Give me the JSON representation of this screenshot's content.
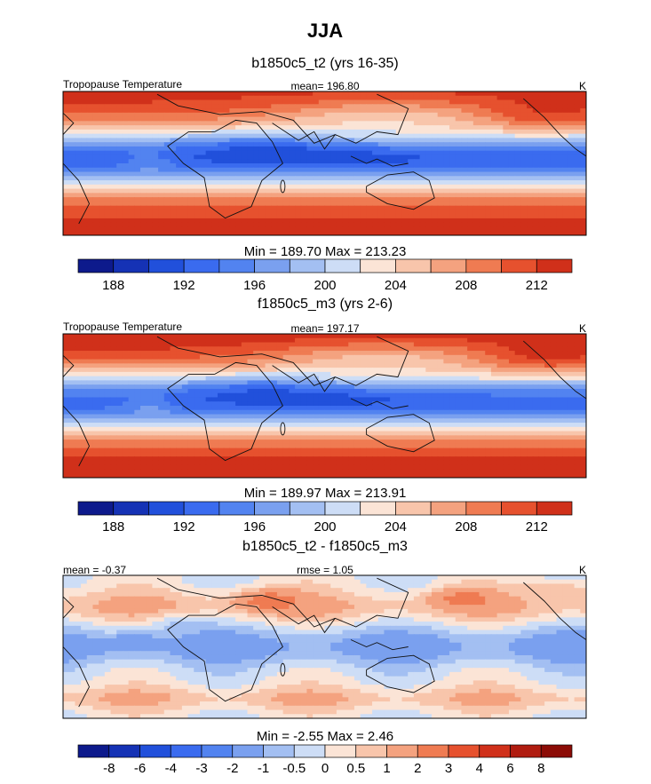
{
  "title": "JJA",
  "chart_data": [
    {
      "type": "heatmap",
      "title": "b1850c5_t2 (yrs 16-35)",
      "left_label": "Tropopause Temperature",
      "center_label": "mean= 196.80",
      "right_label": "K",
      "field": {
        "mean": 196.8,
        "min": 189.7,
        "max": 213.23,
        "tropics_value": 193.0,
        "pole_value": 213.0,
        "band_width": 30,
        "lat_range": [
          -60,
          70
        ],
        "lon_range": [
          -20,
          340
        ]
      },
      "stats_text": "Min = 189.70 Max = 213.23",
      "colorbar": {
        "levels": [
          186,
          188,
          190,
          192,
          194,
          196,
          198,
          200,
          202,
          204,
          206,
          208,
          210,
          212,
          214
        ],
        "tick_labels": [
          "188",
          "192",
          "196",
          "200",
          "204",
          "208",
          "212"
        ]
      }
    },
    {
      "type": "heatmap",
      "title": "f1850c5_m3 (yrs 2-6)",
      "left_label": "Tropopause Temperature",
      "center_label": "mean= 197.17",
      "right_label": "K",
      "field": {
        "mean": 197.17,
        "min": 189.97,
        "max": 213.91,
        "tropics_value": 193.4,
        "pole_value": 213.6,
        "band_width": 30,
        "lat_range": [
          -60,
          70
        ],
        "lon_range": [
          -20,
          340
        ]
      },
      "stats_text": "Min = 189.97 Max = 213.91",
      "colorbar": {
        "levels": [
          186,
          188,
          190,
          192,
          194,
          196,
          198,
          200,
          202,
          204,
          206,
          208,
          210,
          212,
          214
        ],
        "tick_labels": [
          "188",
          "192",
          "196",
          "200",
          "204",
          "208",
          "212"
        ]
      }
    },
    {
      "type": "heatmap",
      "title": "b1850c5_t2 - f1850c5_m3",
      "left_label": "mean =  -0.37",
      "center_label": "rmse =   1.05",
      "right_label": "K",
      "field": {
        "mean": -0.37,
        "rmse": 1.05,
        "min": -2.55,
        "max": 2.46,
        "lat_range": [
          -60,
          70
        ],
        "lon_range": [
          -20,
          340
        ]
      },
      "stats_text": "Min =  -2.55 Max =   2.46",
      "colorbar": {
        "levels": [
          -10,
          -8,
          -6,
          -4,
          -3,
          -2,
          -1,
          -0.5,
          0,
          0.5,
          1,
          2,
          3,
          4,
          6,
          8,
          10
        ],
        "tick_labels": [
          "-8",
          "-6",
          "-4",
          "-3",
          "-2",
          "-1",
          "-0.5",
          "0",
          "0.5",
          "1",
          "2",
          "3",
          "4",
          "6",
          "8"
        ]
      }
    }
  ],
  "palette": [
    "#0d1a8c",
    "#1532b5",
    "#2150db",
    "#3a6bef",
    "#5283f0",
    "#7aa0ef",
    "#a3bff2",
    "#cdddf6",
    "#fbe4d6",
    "#f8c5ab",
    "#f4a27f",
    "#ef7b52",
    "#e6512e",
    "#d0301a",
    "#b01c10",
    "#8c0c06"
  ]
}
